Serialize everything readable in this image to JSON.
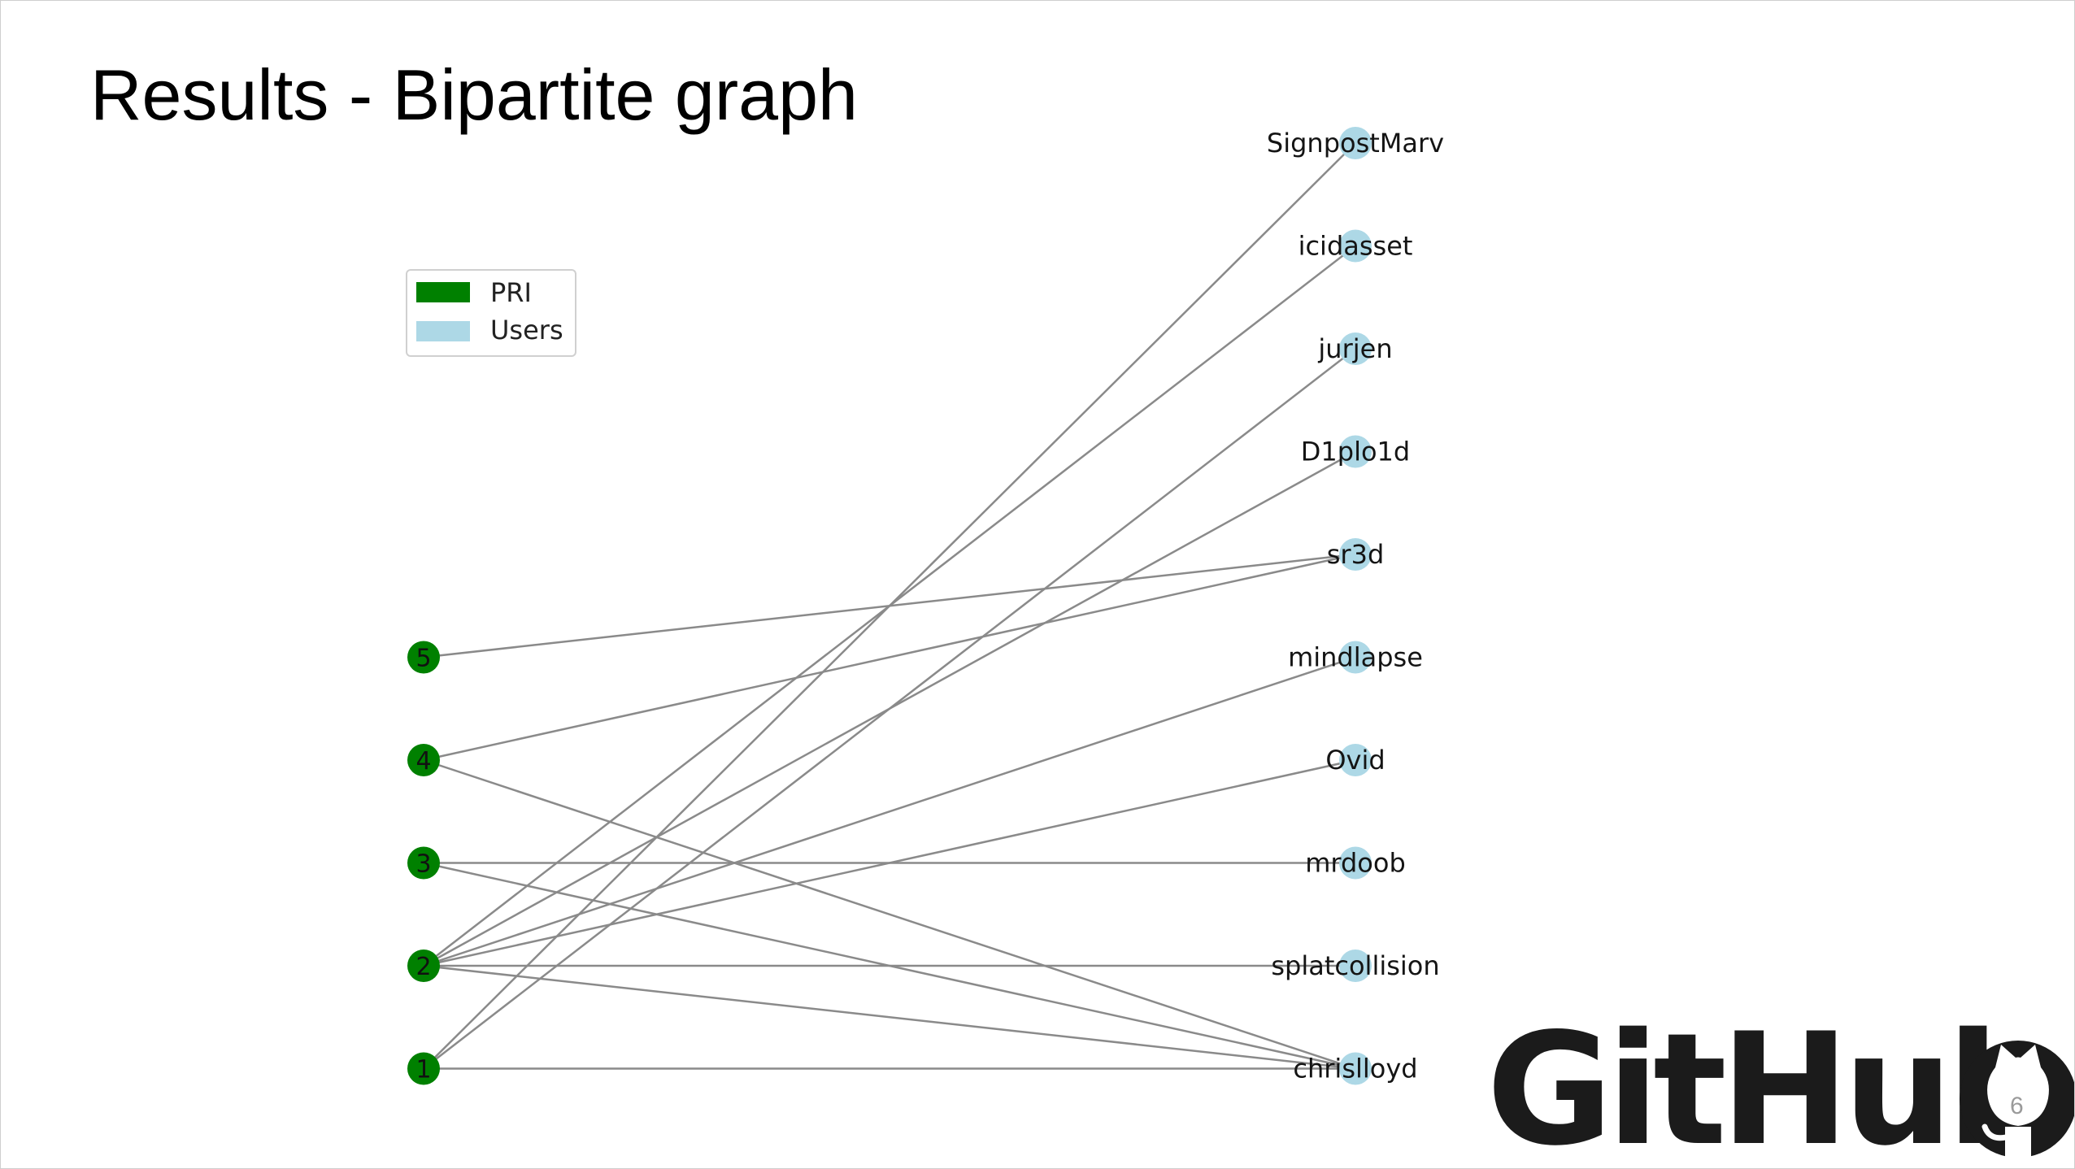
{
  "slide": {
    "title": "Results - Bipartite graph",
    "page_number": "6",
    "logo": {
      "wordmark": "GitHub",
      "icon": "github-octocat-icon"
    }
  },
  "graph": {
    "type": "bipartite",
    "legend": [
      {
        "label": "PRI",
        "color": "#008000"
      },
      {
        "label": "Users",
        "color": "#add8e6"
      }
    ],
    "pri_color": "#008000",
    "user_color": "#add8e6",
    "edge_color": "#8a8a8a",
    "pri_nodes": [
      "5",
      "4",
      "3",
      "2",
      "1"
    ],
    "user_nodes": [
      "SignpostMarv",
      "icidasset",
      "jurjen",
      "D1plo1d",
      "sr3d",
      "mindlapse",
      "Ovid",
      "mrdoob",
      "splatcollision",
      "chrislloyd"
    ],
    "edges": [
      [
        "5",
        "sr3d"
      ],
      [
        "4",
        "sr3d"
      ],
      [
        "4",
        "chrislloyd"
      ],
      [
        "3",
        "mrdoob"
      ],
      [
        "3",
        "chrislloyd"
      ],
      [
        "2",
        "icidasset"
      ],
      [
        "2",
        "D1plo1d"
      ],
      [
        "2",
        "mindlapse"
      ],
      [
        "2",
        "Ovid"
      ],
      [
        "2",
        "splatcollision"
      ],
      [
        "2",
        "chrislloyd"
      ],
      [
        "1",
        "SignpostMarv"
      ],
      [
        "1",
        "jurjen"
      ],
      [
        "1",
        "chrislloyd"
      ]
    ]
  }
}
